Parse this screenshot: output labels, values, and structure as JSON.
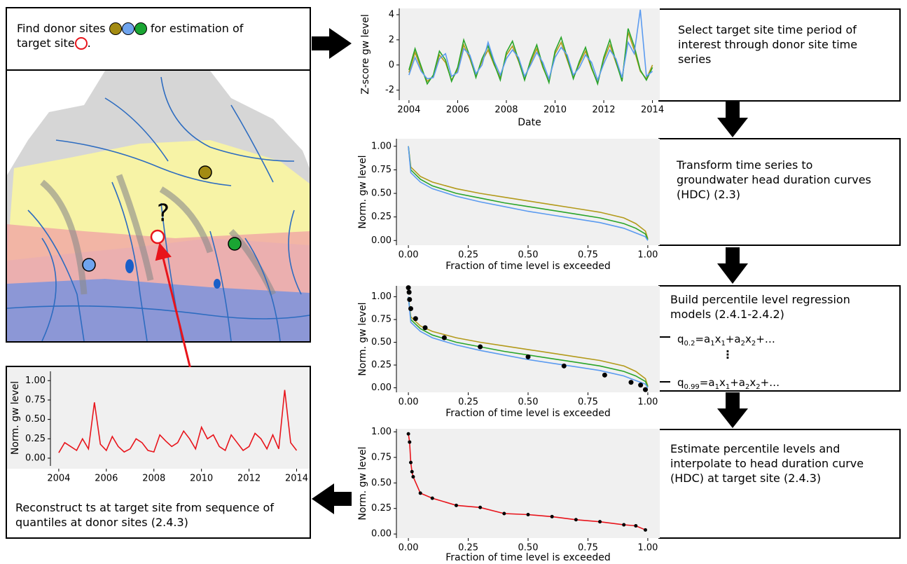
{
  "diagram": {
    "find_text": [
      "Find donor sites",
      "for estimation of",
      "target site",
      "."
    ],
    "map_question": "?",
    "steps": [
      "Select target site time period of interest through donor site time series",
      "Transform time series to groundwater head duration curves (HDC) (2.3)",
      "Build percentile level regression models (2.4.1-2.4.2)",
      "Estimate percentile levels and interpolate to head duration curve (HDC) at target site (2.4.3)"
    ],
    "reconstruct": "Reconstruct ts at target site from sequence of quantiles at donor sites (2.4.3)"
  },
  "chart_data": [
    {
      "type": "line",
      "xlabel": "Date",
      "ylabel": "Z-score gw level",
      "x": [
        2004,
        2004.25,
        2004.5,
        2004.75,
        2005,
        2005.25,
        2005.5,
        2005.75,
        2006,
        2006.25,
        2006.5,
        2006.75,
        2007,
        2007.25,
        2007.5,
        2007.75,
        2008,
        2008.25,
        2008.5,
        2008.75,
        2009,
        2009.25,
        2009.5,
        2009.75,
        2010,
        2010.25,
        2010.5,
        2010.75,
        2011,
        2011.25,
        2011.5,
        2011.75,
        2012,
        2012.25,
        2012.5,
        2012.75,
        2013,
        2013.25,
        2013.5,
        2013.75,
        2014
      ],
      "series": [
        {
          "name": "olive",
          "color": "#b39a1b",
          "values": [
            -0.6,
            1.0,
            -0.3,
            -1.3,
            -0.9,
            0.8,
            0.2,
            -1.2,
            -0.4,
            1.6,
            0.5,
            -0.9,
            0.3,
            1.2,
            0.0,
            -1.0,
            0.8,
            1.5,
            0.3,
            -1.1,
            0.2,
            1.3,
            -0.2,
            -1.3,
            0.9,
            1.8,
            0.4,
            -1.0,
            0.1,
            1.1,
            -0.3,
            -1.4,
            0.4,
            1.6,
            0.2,
            -1.2,
            2.6,
            1.2,
            -0.5,
            -1.1,
            0.0
          ]
        },
        {
          "name": "green",
          "color": "#2aa52a",
          "values": [
            -0.4,
            1.3,
            -0.1,
            -1.5,
            -0.8,
            1.1,
            0.4,
            -1.3,
            -0.2,
            2.0,
            0.7,
            -1.0,
            0.5,
            1.5,
            0.1,
            -1.2,
            1.0,
            1.9,
            0.4,
            -1.2,
            0.4,
            1.6,
            -0.1,
            -1.4,
            1.1,
            2.2,
            0.6,
            -1.1,
            0.3,
            1.4,
            -0.2,
            -1.5,
            0.6,
            2.0,
            0.3,
            -1.3,
            2.9,
            1.5,
            -0.4,
            -1.2,
            -0.2
          ]
        },
        {
          "name": "blue",
          "color": "#5b9bf0",
          "values": [
            -0.8,
            0.6,
            -0.5,
            -1.1,
            -1.0,
            0.5,
            0.9,
            -0.9,
            -0.6,
            1.3,
            0.8,
            -0.7,
            0.0,
            1.8,
            0.3,
            -0.8,
            0.5,
            1.2,
            0.6,
            -0.9,
            0.0,
            1.0,
            0.2,
            -1.1,
            0.6,
            1.4,
            0.8,
            -0.8,
            -0.2,
            0.8,
            0.2,
            -1.2,
            0.1,
            1.2,
            0.5,
            -1.0,
            1.8,
            0.9,
            4.4,
            -0.9,
            -0.5
          ]
        }
      ],
      "xlim": [
        2003.6,
        2014.3
      ],
      "ylim": [
        -2.8,
        4.5
      ],
      "xticks": [
        2004,
        2006,
        2008,
        2010,
        2012,
        2014
      ],
      "yticks": [
        -2,
        0,
        2,
        4
      ]
    },
    {
      "type": "line",
      "xlabel": "Fraction of time level is exceeded",
      "ylabel": "Norm. gw level",
      "x": [
        0,
        0.01,
        0.05,
        0.1,
        0.2,
        0.3,
        0.4,
        0.5,
        0.6,
        0.7,
        0.8,
        0.9,
        0.95,
        0.99,
        1.0
      ],
      "series": [
        {
          "name": "olive",
          "color": "#b39a1b",
          "values": [
            1.0,
            0.78,
            0.68,
            0.62,
            0.55,
            0.5,
            0.46,
            0.42,
            0.38,
            0.34,
            0.3,
            0.24,
            0.18,
            0.1,
            0.02
          ]
        },
        {
          "name": "green",
          "color": "#2aa52a",
          "values": [
            1.0,
            0.75,
            0.65,
            0.58,
            0.5,
            0.45,
            0.4,
            0.36,
            0.32,
            0.28,
            0.24,
            0.18,
            0.13,
            0.07,
            0.01
          ]
        },
        {
          "name": "blue",
          "color": "#5b9bf0",
          "values": [
            1.0,
            0.72,
            0.62,
            0.55,
            0.47,
            0.41,
            0.36,
            0.31,
            0.27,
            0.23,
            0.19,
            0.13,
            0.08,
            0.04,
            0.0
          ]
        }
      ],
      "xlim": [
        -0.05,
        1.05
      ],
      "ylim": [
        -0.05,
        1.08
      ],
      "xticks": [
        {
          "value": 0,
          "label": "0.00"
        },
        {
          "value": 0.25,
          "label": "0.25"
        },
        {
          "value": 0.5,
          "label": "0.50"
        },
        {
          "value": 0.75,
          "label": "0.75"
        },
        {
          "value": 1,
          "label": "1.00"
        }
      ],
      "yticks": [
        {
          "value": 0,
          "label": "0.00"
        },
        {
          "value": 0.25,
          "label": "0.25"
        },
        {
          "value": 0.5,
          "label": "0.50"
        },
        {
          "value": 0.75,
          "label": "0.75"
        },
        {
          "value": 1,
          "label": "1.00"
        }
      ]
    },
    {
      "type": "line",
      "xlabel": "Fraction of time level is exceeded",
      "ylabel": "Norm. gw level",
      "x": [
        0,
        0.01,
        0.05,
        0.1,
        0.2,
        0.3,
        0.4,
        0.5,
        0.6,
        0.7,
        0.8,
        0.9,
        0.95,
        0.99,
        1.0
      ],
      "series": [
        {
          "name": "olive",
          "color": "#b39a1b",
          "values": [
            1.0,
            0.78,
            0.68,
            0.62,
            0.55,
            0.5,
            0.46,
            0.42,
            0.38,
            0.34,
            0.3,
            0.24,
            0.18,
            0.1,
            0.02
          ]
        },
        {
          "name": "green",
          "color": "#2aa52a",
          "values": [
            1.0,
            0.75,
            0.65,
            0.58,
            0.5,
            0.45,
            0.4,
            0.36,
            0.32,
            0.28,
            0.24,
            0.18,
            0.13,
            0.07,
            0.01
          ]
        },
        {
          "name": "blue",
          "color": "#5b9bf0",
          "values": [
            1.0,
            0.72,
            0.62,
            0.55,
            0.47,
            0.41,
            0.36,
            0.31,
            0.27,
            0.23,
            0.19,
            0.13,
            0.08,
            0.04,
            0.0
          ]
        }
      ],
      "points": {
        "color": "#000000",
        "x": [
          0,
          0.003,
          0.005,
          0.01,
          0.03,
          0.07,
          0.15,
          0.3,
          0.5,
          0.65,
          0.82,
          0.93,
          0.97,
          0.99
        ],
        "y": [
          1.1,
          1.05,
          0.97,
          0.87,
          0.76,
          0.66,
          0.55,
          0.45,
          0.34,
          0.24,
          0.14,
          0.06,
          0.03,
          -0.02
        ]
      },
      "annotations": [
        [
          "q",
          "0.2",
          "=a",
          "1",
          "x",
          "1",
          "+a",
          "2",
          "x",
          "2",
          "+…"
        ],
        "⋮",
        [
          "q",
          "0.99",
          "=a",
          "1",
          "x",
          "1",
          "+a",
          "2",
          "x",
          "2",
          "+…"
        ]
      ],
      "xlim": [
        -0.05,
        1.05
      ],
      "ylim": [
        -0.05,
        1.12
      ],
      "xticks": [
        {
          "value": 0,
          "label": "0.00"
        },
        {
          "value": 0.25,
          "label": "0.25"
        },
        {
          "value": 0.5,
          "label": "0.50"
        },
        {
          "value": 0.75,
          "label": "0.75"
        },
        {
          "value": 1,
          "label": "1.00"
        }
      ],
      "yticks": [
        {
          "value": 0,
          "label": "0.00"
        },
        {
          "value": 0.25,
          "label": "0.25"
        },
        {
          "value": 0.5,
          "label": "0.50"
        },
        {
          "value": 0.75,
          "label": "0.75"
        },
        {
          "value": 1,
          "label": "1.00"
        }
      ]
    },
    {
      "type": "line",
      "xlabel": "Fraction of time level is exceeded",
      "ylabel": "Norm. gw level",
      "markers": true,
      "x": [
        0,
        0.005,
        0.01,
        0.015,
        0.02,
        0.05,
        0.1,
        0.2,
        0.3,
        0.4,
        0.5,
        0.6,
        0.7,
        0.8,
        0.9,
        0.95,
        0.99
      ],
      "series": [
        {
          "name": "target",
          "color": "#e8141b",
          "values": [
            0.98,
            0.9,
            0.7,
            0.61,
            0.56,
            0.4,
            0.35,
            0.28,
            0.26,
            0.2,
            0.19,
            0.17,
            0.14,
            0.12,
            0.09,
            0.08,
            0.04
          ]
        }
      ],
      "xlim": [
        -0.05,
        1.05
      ],
      "ylim": [
        -0.04,
        1.03
      ],
      "xticks": [
        {
          "value": 0,
          "label": "0.00"
        },
        {
          "value": 0.25,
          "label": "0.25"
        },
        {
          "value": 0.5,
          "label": "0.50"
        },
        {
          "value": 0.75,
          "label": "0.75"
        },
        {
          "value": 1,
          "label": "1.00"
        }
      ],
      "yticks": [
        {
          "value": 0,
          "label": "0.00"
        },
        {
          "value": 0.25,
          "label": "0.25"
        },
        {
          "value": 0.5,
          "label": "0.50"
        },
        {
          "value": 0.75,
          "label": "0.75"
        },
        {
          "value": 1,
          "label": "1.00"
        }
      ]
    },
    {
      "type": "line",
      "ylabel": "Norm. gw level",
      "x": [
        2004,
        2004.25,
        2004.5,
        2004.75,
        2005,
        2005.25,
        2005.5,
        2005.75,
        2006,
        2006.25,
        2006.5,
        2006.75,
        2007,
        2007.25,
        2007.5,
        2007.75,
        2008,
        2008.25,
        2008.5,
        2008.75,
        2009,
        2009.25,
        2009.5,
        2009.75,
        2010,
        2010.25,
        2010.5,
        2010.75,
        2011,
        2011.25,
        2011.5,
        2011.75,
        2012,
        2012.25,
        2012.5,
        2012.75,
        2013,
        2013.25,
        2013.5,
        2013.75,
        2014
      ],
      "series": [
        {
          "name": "target",
          "color": "#e8141b",
          "values": [
            0.07,
            0.2,
            0.15,
            0.1,
            0.25,
            0.12,
            0.72,
            0.18,
            0.1,
            0.28,
            0.15,
            0.08,
            0.12,
            0.25,
            0.2,
            0.1,
            0.08,
            0.3,
            0.22,
            0.15,
            0.2,
            0.35,
            0.25,
            0.12,
            0.4,
            0.25,
            0.3,
            0.15,
            0.1,
            0.3,
            0.2,
            0.1,
            0.15,
            0.32,
            0.25,
            0.12,
            0.3,
            0.12,
            0.88,
            0.2,
            0.1
          ]
        }
      ],
      "xlim": [
        2003.65,
        2014.25
      ],
      "ylim": [
        -0.1,
        1.12
      ],
      "xticks": [
        2004,
        2006,
        2008,
        2010,
        2012,
        2014
      ],
      "yticks": [
        {
          "value": 0,
          "label": "0.00"
        },
        {
          "value": 0.25,
          "label": "0.25"
        },
        {
          "value": 0.5,
          "label": "0.50"
        },
        {
          "value": 0.75,
          "label": "0.75"
        },
        {
          "value": 1,
          "label": "1.00"
        }
      ]
    }
  ]
}
